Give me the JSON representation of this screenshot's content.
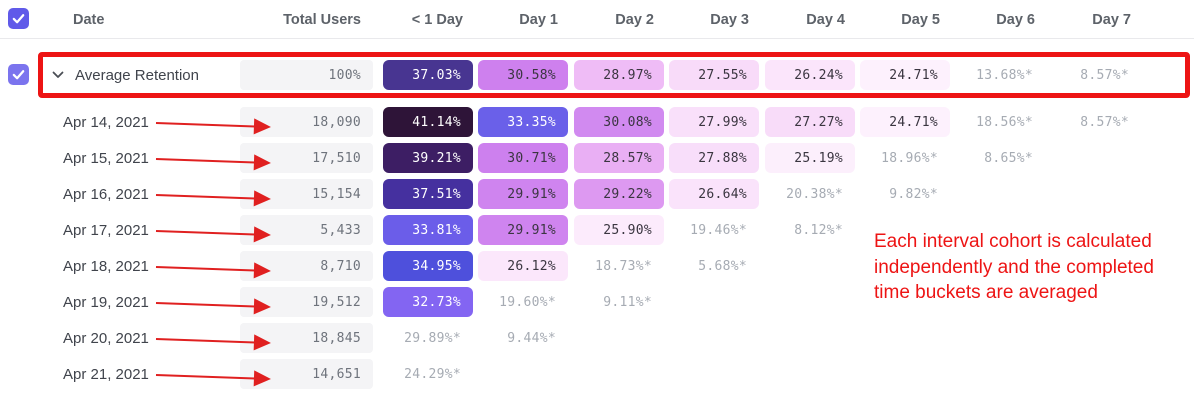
{
  "table": {
    "columns": [
      "Date",
      "Total Users",
      "< 1 Day",
      "Day 1",
      "Day 2",
      "Day 3",
      "Day 4",
      "Day 5",
      "Day 6",
      "Day 7"
    ],
    "rows": [
      {
        "label": "Average Retention",
        "type": "average",
        "total": "100%",
        "cells": [
          {
            "text": "37.03%",
            "bg": "#483591",
            "fg": "#ffffff"
          },
          {
            "text": "30.58%",
            "bg": "#ce80ee",
            "fg": "#3a3540"
          },
          {
            "text": "28.97%",
            "bg": "#efbcf6",
            "fg": "#3a3540"
          },
          {
            "text": "27.55%",
            "bg": "#f8dbf9",
            "fg": "#3a3540"
          },
          {
            "text": "26.24%",
            "bg": "#fbe5fb",
            "fg": "#3a3540"
          },
          {
            "text": "24.71%",
            "bg": "#fdf1fd",
            "fg": "#3a3540"
          },
          {
            "text": "13.68%*",
            "bg": null,
            "fg": null
          },
          {
            "text": "8.57%*",
            "bg": null,
            "fg": null
          }
        ]
      },
      {
        "label": "Apr 14, 2021",
        "type": "date",
        "total": "18,090",
        "cells": [
          {
            "text": "41.14%",
            "bg": "#2e1438",
            "fg": "#ffffff"
          },
          {
            "text": "33.35%",
            "bg": "#6a60e9",
            "fg": "#ffffff"
          },
          {
            "text": "30.08%",
            "bg": "#d18af0",
            "fg": "#3a3540"
          },
          {
            "text": "27.99%",
            "bg": "#f9e0fa",
            "fg": "#3a3540"
          },
          {
            "text": "27.27%",
            "bg": "#f8dcf9",
            "fg": "#3a3540"
          },
          {
            "text": "24.71%",
            "bg": "#fdf1fd",
            "fg": "#3a3540"
          },
          {
            "text": "18.56%*",
            "bg": null,
            "fg": null
          },
          {
            "text": "8.57%*",
            "bg": null,
            "fg": null
          }
        ]
      },
      {
        "label": "Apr 15, 2021",
        "type": "date",
        "total": "17,510",
        "cells": [
          {
            "text": "39.21%",
            "bg": "#3d1e64",
            "fg": "#ffffff"
          },
          {
            "text": "30.71%",
            "bg": "#cd80ee",
            "fg": "#3a3540"
          },
          {
            "text": "28.57%",
            "bg": "#e9aff4",
            "fg": "#3a3540"
          },
          {
            "text": "27.88%",
            "bg": "#f8defa",
            "fg": "#3a3540"
          },
          {
            "text": "25.19%",
            "bg": "#fceffc",
            "fg": "#3a3540"
          },
          {
            "text": "18.96%*",
            "bg": null,
            "fg": null
          },
          {
            "text": "8.65%*",
            "bg": null,
            "fg": null
          },
          null
        ]
      },
      {
        "label": "Apr 16, 2021",
        "type": "date",
        "total": "15,154",
        "cells": [
          {
            "text": "37.51%",
            "bg": "#45309f",
            "fg": "#ffffff"
          },
          {
            "text": "29.91%",
            "bg": "#cf84ef",
            "fg": "#3a3540"
          },
          {
            "text": "29.22%",
            "bg": "#dd99f1",
            "fg": "#3a3540"
          },
          {
            "text": "26.64%",
            "bg": "#fae3fb",
            "fg": "#3a3540"
          },
          {
            "text": "20.38%*",
            "bg": null,
            "fg": null
          },
          {
            "text": "9.82%*",
            "bg": null,
            "fg": null
          },
          null,
          null
        ]
      },
      {
        "label": "Apr 17, 2021",
        "type": "date",
        "total": "5,433",
        "cells": [
          {
            "text": "33.81%",
            "bg": "#6b5de9",
            "fg": "#ffffff"
          },
          {
            "text": "29.91%",
            "bg": "#cf84ef",
            "fg": "#3a3540"
          },
          {
            "text": "25.90%",
            "bg": "#fcebfc",
            "fg": "#3a3540"
          },
          {
            "text": "19.46%*",
            "bg": null,
            "fg": null
          },
          {
            "text": "8.12%*",
            "bg": null,
            "fg": null
          },
          null,
          null,
          null
        ]
      },
      {
        "label": "Apr 18, 2021",
        "type": "date",
        "total": "8,710",
        "cells": [
          {
            "text": "34.95%",
            "bg": "#4e50dc",
            "fg": "#ffffff"
          },
          {
            "text": "26.12%",
            "bg": "#fbe7fb",
            "fg": "#3a3540"
          },
          {
            "text": "18.73%*",
            "bg": null,
            "fg": null
          },
          {
            "text": "5.68%*",
            "bg": null,
            "fg": null
          },
          null,
          null,
          null,
          null
        ]
      },
      {
        "label": "Apr 19, 2021",
        "type": "date",
        "total": "19,512",
        "cells": [
          {
            "text": "32.73%",
            "bg": "#8365f2",
            "fg": "#ffffff"
          },
          {
            "text": "19.60%*",
            "bg": null,
            "fg": null
          },
          {
            "text": "9.11%*",
            "bg": null,
            "fg": null
          },
          null,
          null,
          null,
          null,
          null
        ]
      },
      {
        "label": "Apr 20, 2021",
        "type": "date",
        "total": "18,845",
        "cells": [
          {
            "text": "29.89%*",
            "bg": null,
            "fg": null
          },
          {
            "text": "9.44%*",
            "bg": null,
            "fg": null
          },
          null,
          null,
          null,
          null,
          null,
          null
        ]
      },
      {
        "label": "Apr 21, 2021",
        "type": "date",
        "total": "14,651",
        "cells": [
          {
            "text": "24.29%*",
            "bg": null,
            "fg": null
          },
          null,
          null,
          null,
          null,
          null,
          null,
          null
        ]
      }
    ]
  },
  "annotations": {
    "note": "Each interval cohort is calculated independently and the completed time buckets are averaged"
  },
  "icons": {
    "header_checkbox": "checkbox-checked",
    "row_checkbox": "checkbox-checked",
    "expand": "chevron-down"
  },
  "colors": {
    "accent_purple": "#605ae9",
    "row_checkbox_purple": "#7b74ee",
    "annotation_red": "#ed1414",
    "total_cell_bg": "#f4f4f6",
    "total_text": "#6e737c",
    "muted_text": "#a6abb3",
    "header_text": "#5d6269",
    "label_text": "#40444c"
  }
}
